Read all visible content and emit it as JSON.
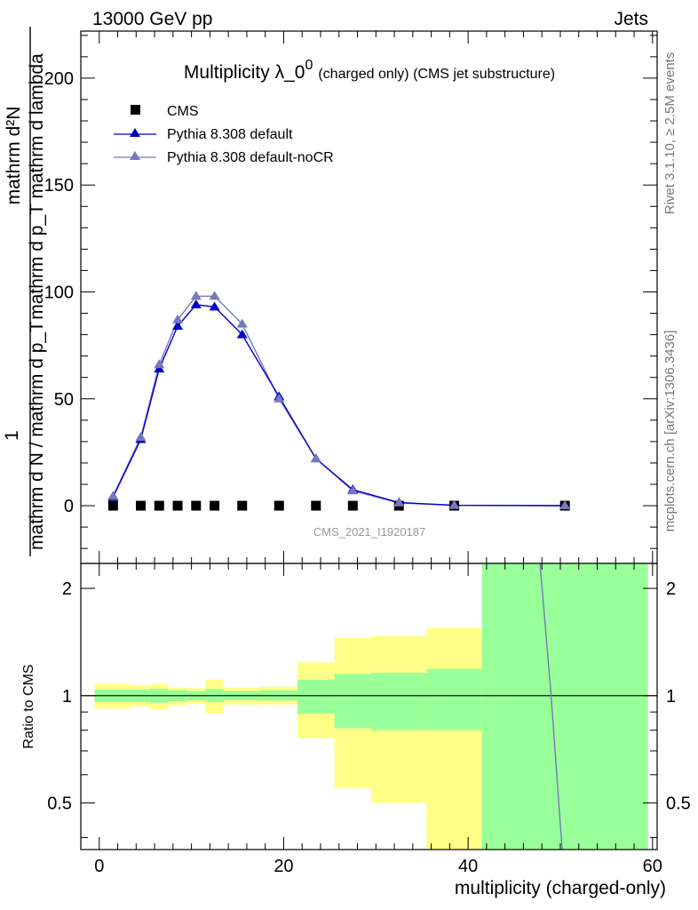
{
  "header": {
    "left": "13000 GeV pp",
    "right": "Jets"
  },
  "side_labels": {
    "rivet": "Rivet 3.1.10, ≥ 2.5M events",
    "mcplots": "mcplots.cern.ch [arXiv:1306.3436]"
  },
  "colors": {
    "cms": "#000000",
    "pythia_default": "#0000cc",
    "pythia_nocr": "#7777bb",
    "band_inner": "#99ff99",
    "band_outer": "#ffff88"
  },
  "chart_data": [
    {
      "type": "line",
      "title_main": "Multiplicity λ_0",
      "title_sup": "0",
      "title_suffix": "(charged only) (CMS jet substructure)",
      "ylabel_numer_lines": [
        "mathrm d²N",
        "mathrm d p_T mathrm d lambda"
      ],
      "ylabel_one": "1",
      "ylabel_denom": "mathrm d N / mathrm d p_T",
      "xlabel": "",
      "xlim": [
        -2,
        60.5
      ],
      "ylim": [
        -27,
        222
      ],
      "yticks": [
        0,
        50,
        100,
        150,
        200
      ],
      "analysis_label": "CMS_2021_I1920187",
      "legend": [
        "CMS",
        "Pythia 8.308 default",
        "Pythia 8.308 default-noCR"
      ],
      "legend_position": "top-left",
      "series": [
        {
          "name": "CMS",
          "marker": "square",
          "x": [
            1.5,
            4.5,
            6.5,
            8.5,
            10.5,
            12.5,
            15.5,
            19.5,
            23.5,
            27.5,
            32.5,
            38.5,
            50.5
          ],
          "values": [
            0,
            0,
            0,
            0,
            0,
            0,
            0,
            0,
            0,
            0,
            0,
            0,
            0
          ]
        },
        {
          "name": "Pythia 8.308 default",
          "marker": "triangle",
          "x": [
            1.5,
            4.5,
            6.5,
            8.5,
            10.5,
            12.5,
            15.5,
            19.5,
            23.5,
            27.5,
            32.5,
            38.5,
            50.5
          ],
          "values": [
            4,
            31,
            64,
            84,
            94,
            93,
            80,
            51,
            22,
            7.5,
            1.5,
            0.2,
            0.02
          ]
        },
        {
          "name": "Pythia 8.308 default-noCR",
          "marker": "triangle",
          "x": [
            1.5,
            4.5,
            6.5,
            8.5,
            10.5,
            12.5,
            15.5,
            19.5,
            23.5,
            27.5,
            32.5,
            38.5,
            50.5
          ],
          "values": [
            4.5,
            32,
            66,
            87,
            98,
            98,
            85,
            50,
            22,
            7,
            1.3,
            0.2,
            0.02
          ]
        }
      ]
    },
    {
      "type": "area",
      "ylabel": "Ratio to CMS",
      "xlabel": "multiplicity (charged-only)",
      "xlim": [
        -2,
        60.5
      ],
      "ylim": [
        0.37,
        2.35
      ],
      "xticks": [
        0,
        20,
        40,
        60
      ],
      "yticks": [
        0.5,
        1,
        2
      ],
      "bins": [
        {
          "lo": -0.5,
          "hi": 3.5,
          "inner": [
            0.96,
            1.04
          ],
          "outer": [
            0.92,
            1.08
          ]
        },
        {
          "lo": 3.5,
          "hi": 5.5,
          "inner": [
            0.96,
            1.04
          ],
          "outer": [
            0.935,
            1.07
          ]
        },
        {
          "lo": 5.5,
          "hi": 7.5,
          "inner": [
            0.955,
            1.045
          ],
          "outer": [
            0.915,
            1.08
          ]
        },
        {
          "lo": 7.5,
          "hi": 9.5,
          "inner": [
            0.965,
            1.035
          ],
          "outer": [
            0.94,
            1.055
          ]
        },
        {
          "lo": 9.5,
          "hi": 11.5,
          "inner": [
            0.97,
            1.03
          ],
          "outer": [
            0.95,
            1.05
          ]
        },
        {
          "lo": 11.5,
          "hi": 13.5,
          "inner": [
            0.96,
            1.045
          ],
          "outer": [
            0.89,
            1.11
          ]
        },
        {
          "lo": 13.5,
          "hi": 17.5,
          "inner": [
            0.97,
            1.03
          ],
          "outer": [
            0.945,
            1.055
          ]
        },
        {
          "lo": 17.5,
          "hi": 21.5,
          "inner": [
            0.97,
            1.035
          ],
          "outer": [
            0.945,
            1.06
          ]
        },
        {
          "lo": 21.5,
          "hi": 25.5,
          "inner": [
            0.89,
            1.11
          ],
          "outer": [
            0.76,
            1.24
          ]
        },
        {
          "lo": 25.5,
          "hi": 29.5,
          "inner": [
            0.81,
            1.15
          ],
          "outer": [
            0.55,
            1.45
          ]
        },
        {
          "lo": 29.5,
          "hi": 35.5,
          "inner": [
            0.8,
            1.16
          ],
          "outer": [
            0.5,
            1.47
          ]
        },
        {
          "lo": 35.5,
          "hi": 41.5,
          "inner": [
            0.8,
            1.19
          ],
          "outer": [
            0.37,
            1.55
          ]
        },
        {
          "lo": 41.5,
          "hi": 59.5,
          "inner": [
            0.37,
            2.35
          ],
          "outer": [
            0.37,
            2.35
          ]
        }
      ],
      "series": [
        {
          "name": "Pythia 8.308 default-noCR",
          "x": [
            47.8,
            49.0,
            50.2
          ],
          "values": [
            2.35,
            1.0,
            0.37
          ]
        }
      ]
    }
  ]
}
